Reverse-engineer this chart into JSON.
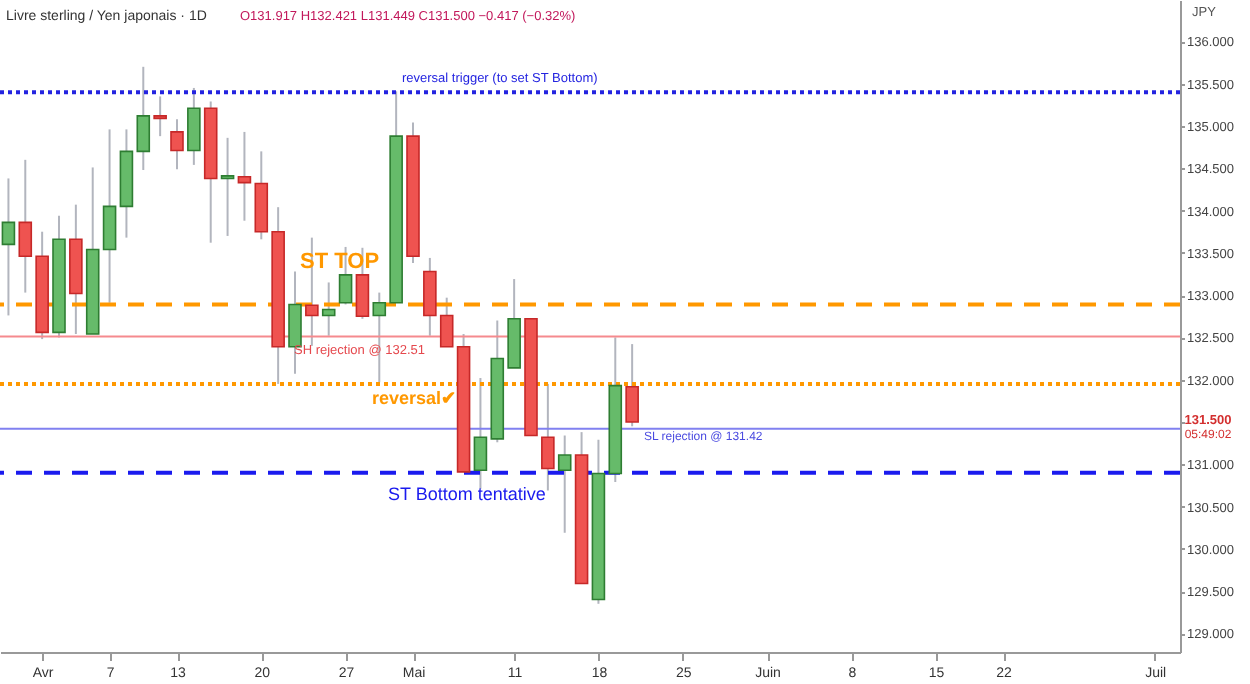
{
  "chart_data": {
    "type": "candlestick",
    "title": "Livre sterling / Yen japonais · 1D",
    "ylabel": "JPY",
    "categories": [
      null,
      null,
      "Avr",
      null,
      null,
      null,
      "7",
      null,
      null,
      null,
      "13",
      null,
      null,
      null,
      null,
      "20",
      null,
      null,
      null,
      null,
      "27",
      null,
      null,
      null,
      "Mai",
      null,
      null,
      null,
      null,
      null,
      "11",
      null,
      null,
      null,
      null,
      "18",
      null,
      null,
      null,
      null,
      "25",
      null,
      null,
      null,
      null,
      "Juin",
      null,
      null,
      null,
      null,
      "8",
      null,
      null,
      null,
      null,
      "15",
      null,
      null,
      null,
      "22",
      null,
      null,
      null,
      null,
      null,
      null,
      null,
      null,
      "Juil",
      null
    ],
    "ohlc": [
      [
        133.6,
        134.38,
        132.76,
        133.86
      ],
      [
        133.86,
        134.6,
        133.03,
        133.46
      ],
      [
        133.46,
        133.75,
        132.48,
        132.56
      ],
      [
        132.56,
        133.94,
        132.5,
        133.66
      ],
      [
        133.66,
        134.07,
        132.54,
        133.02
      ],
      [
        132.54,
        134.51,
        132.54,
        133.54
      ],
      [
        133.54,
        134.96,
        132.91,
        134.05
      ],
      [
        134.05,
        134.96,
        133.68,
        134.7
      ],
      [
        134.7,
        135.7,
        134.48,
        135.12
      ],
      [
        135.12,
        135.35,
        134.88,
        135.09
      ],
      [
        134.93,
        135.08,
        134.49,
        134.71
      ],
      [
        134.71,
        135.45,
        134.54,
        135.21
      ],
      [
        135.21,
        135.29,
        133.62,
        134.38
      ],
      [
        134.38,
        134.86,
        133.7,
        134.41
      ],
      [
        134.4,
        134.93,
        133.88,
        134.33
      ],
      [
        134.32,
        134.7,
        133.66,
        133.75
      ],
      [
        133.75,
        134.04,
        131.95,
        132.39
      ],
      [
        132.39,
        133.28,
        132.07,
        132.89
      ],
      [
        132.88,
        133.68,
        132.4,
        132.76
      ],
      [
        132.76,
        133.15,
        132.52,
        132.83
      ],
      [
        132.91,
        133.57,
        132.89,
        133.24
      ],
      [
        133.24,
        133.56,
        132.72,
        132.75
      ],
      [
        132.76,
        133.03,
        131.97,
        132.91
      ],
      [
        132.91,
        135.41,
        132.91,
        134.88
      ],
      [
        134.88,
        135.04,
        133.38,
        133.46
      ],
      [
        133.28,
        133.44,
        132.52,
        132.76
      ],
      [
        132.76,
        132.97,
        132.39,
        132.39
      ],
      [
        132.39,
        132.54,
        130.91,
        130.91
      ],
      [
        130.93,
        132.02,
        130.71,
        131.32
      ],
      [
        131.3,
        132.7,
        131.26,
        132.25
      ],
      [
        132.14,
        133.19,
        132.14,
        132.72
      ],
      [
        132.72,
        132.72,
        131.34,
        131.34
      ],
      [
        131.32,
        131.95,
        130.69,
        130.95
      ],
      [
        130.93,
        131.34,
        130.19,
        131.11
      ],
      [
        131.11,
        131.38,
        129.59,
        129.59
      ],
      [
        129.4,
        131.29,
        129.35,
        130.89
      ],
      [
        130.89,
        132.5,
        130.79,
        131.93
      ],
      [
        131.917,
        132.421,
        131.449,
        131.5
      ],
      null,
      null,
      null,
      null,
      null,
      null,
      null,
      null,
      null,
      null,
      null,
      null,
      null,
      null,
      null,
      null,
      null,
      null,
      null,
      null,
      null,
      null,
      null,
      null,
      null,
      null,
      null,
      null,
      null,
      null,
      null,
      null
    ],
    "ylim": [
      128.78,
      136.49
    ],
    "yticks": [
      {
        "value": 129,
        "label": "129.000"
      },
      {
        "value": 129.5,
        "label": "129.500"
      },
      {
        "value": 130,
        "label": "130.000"
      },
      {
        "value": 130.5,
        "label": "130.500"
      },
      {
        "value": 131,
        "label": "131.000"
      },
      {
        "value": 131.5,
        "label": null
      },
      {
        "value": 132,
        "label": "132.000"
      },
      {
        "value": 132.5,
        "label": "132.500"
      },
      {
        "value": 133,
        "label": "133.000"
      },
      {
        "value": 133.5,
        "label": "133.500"
      },
      {
        "value": 134,
        "label": "134.000"
      },
      {
        "value": 134.5,
        "label": "134.500"
      },
      {
        "value": 135,
        "label": "135.000"
      },
      {
        "value": 135.5,
        "label": "135.500"
      },
      {
        "value": 136,
        "label": "136.000"
      }
    ],
    "ref_lines": [
      {
        "axis": "y",
        "value": 135.4,
        "color": "#2424e0",
        "line_style": "dotted"
      },
      {
        "axis": "y",
        "value": 132.89,
        "color": "#ff9800",
        "line_style": "dashed"
      },
      {
        "axis": "y",
        "value": 132.51,
        "color": "#f58a8e",
        "line_style": "solid"
      },
      {
        "axis": "y",
        "value": 131.95,
        "color": "#ff9800",
        "line_style": "dotted"
      },
      {
        "axis": "y",
        "value": 131.42,
        "color": "#8080f0",
        "line_style": "solid"
      },
      {
        "axis": "y",
        "value": 130.9,
        "color": "#1a1aee",
        "line_style": "dashed"
      }
    ],
    "annotations": [
      "O131.917 H132.421 L131.449 C131.500 −0.417 (−0.32%)",
      "reversal trigger (to set ST Bottom)",
      "ST TOP",
      "SH rejection @ 132.51",
      "reversal✔",
      "SL rejection @ 131.42",
      "ST Bottom tentative",
      "131.500",
      "05:49:02"
    ]
  }
}
